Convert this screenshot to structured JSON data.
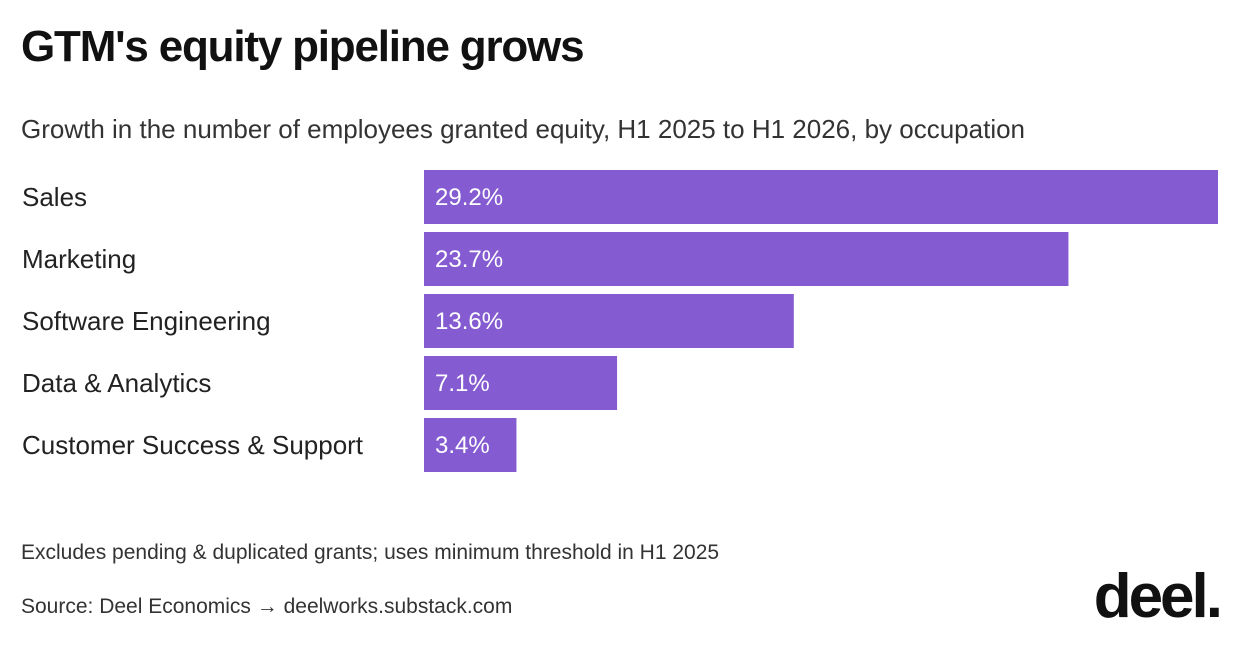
{
  "title": "GTM's equity pipeline grows",
  "subtitle": "Growth in the number of employees granted equity, H1 2025 to H1 2026, by occupation",
  "note": "Excludes pending & duplicated grants; uses minimum threshold in H1 2025",
  "source": "Source: Deel Economics → deelworks.substack.com",
  "logo_text": "deel.",
  "chart_data": {
    "type": "bar",
    "orientation": "horizontal",
    "categories": [
      "Sales",
      "Marketing",
      "Software Engineering",
      "Data & Analytics",
      "Customer Success & Support"
    ],
    "values": [
      29.2,
      23.7,
      13.6,
      7.1,
      3.4
    ],
    "value_labels": [
      "29.2%",
      "23.7%",
      "13.6%",
      "7.1%",
      "3.4%"
    ],
    "title": "GTM's equity pipeline grows",
    "subtitle": "Growth in the number of employees granted equity, H1 2025 to H1 2026, by occupation",
    "xlabel": "",
    "ylabel": "",
    "grid": false,
    "legend": "none",
    "bar_color": "#845bd0",
    "xlim": [
      0,
      29.2
    ]
  }
}
